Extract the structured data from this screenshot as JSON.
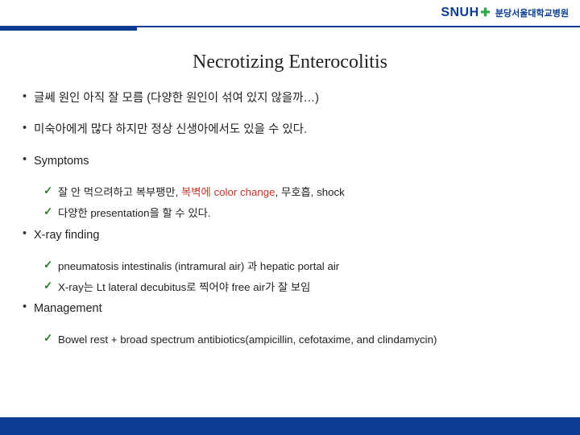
{
  "brand": {
    "logo_text": "SNUH",
    "sub_text": "분당서울대학교병원"
  },
  "title": "Necrotizing Enterocolitis",
  "bullets": [
    {
      "level": 1,
      "text": "글쎄 원인 아직 잘 모름 (다양한 원인이 섞여 있지 않을까…)"
    },
    {
      "level": 1,
      "text": "미숙아에게 많다 하지만 정상 신생아에서도 있을 수 있다."
    },
    {
      "level": 1,
      "text": "Symptoms"
    },
    {
      "level": 2,
      "text_pre": "잘 안 먹으려하고 복부팽만, ",
      "text_red": "복벽에 color change",
      "text_post": ", 무호흡, shock"
    },
    {
      "level": 2,
      "text": "다양한 presentation을 할 수 있다."
    },
    {
      "level": 1,
      "text": "X-ray finding"
    },
    {
      "level": 2,
      "text": "pneumatosis intestinalis (intramural air) 과 hepatic portal air"
    },
    {
      "level": 2,
      "text": "X-ray는 Lt lateral decubitus로 찍어야 free air가 잘 보임"
    },
    {
      "level": 1,
      "text": "Management"
    },
    {
      "level": 2,
      "text": "Bowel rest + broad spectrum antibiotics(ampicillin, cefotaxime, and clindamycin)"
    }
  ],
  "colors": {
    "accent": "#0a3d91",
    "check": "#2a7a2a",
    "emphasis": "#c0392b",
    "text": "#222222",
    "background": "#ffffff"
  }
}
